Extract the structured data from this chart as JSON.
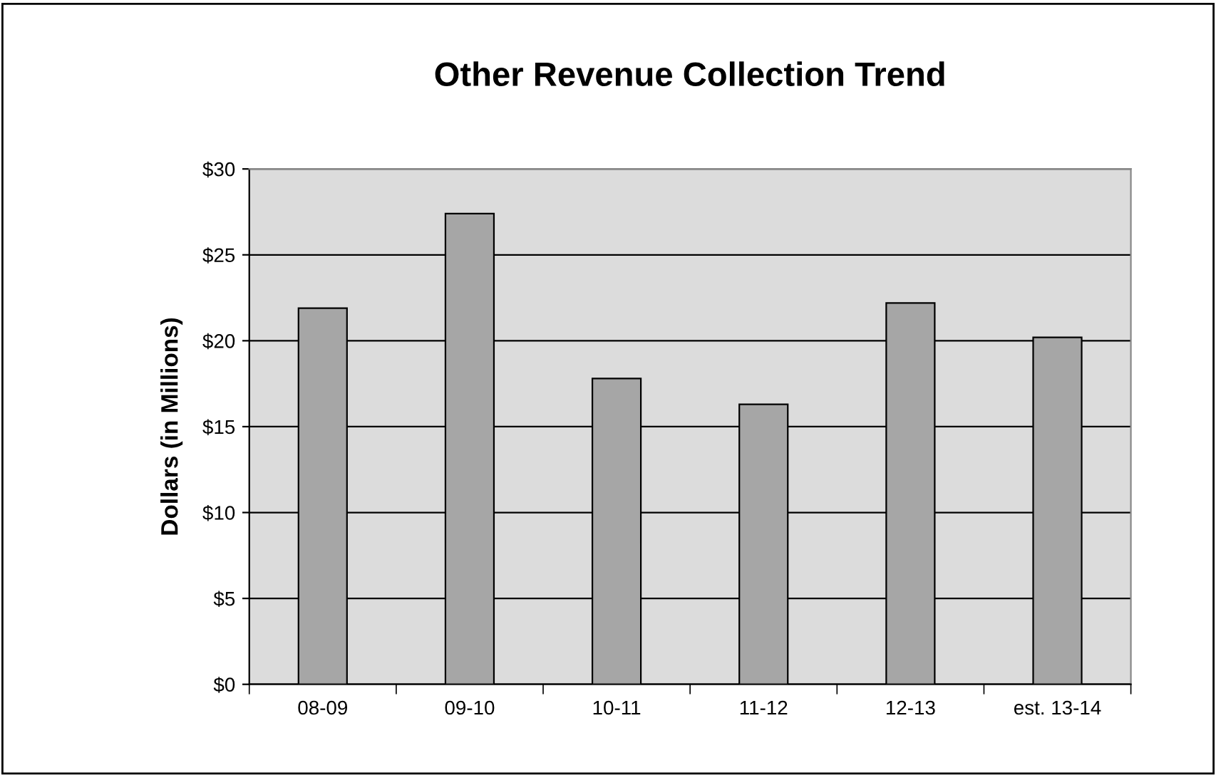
{
  "chart_data": {
    "type": "bar",
    "title": "Other Revenue Collection Trend",
    "ylabel": "Dollars (in Millions)",
    "categories": [
      "08-09",
      "09-10",
      "10-11",
      "11-12",
      "12-13",
      "est. 13-14"
    ],
    "values": [
      21.9,
      27.4,
      17.8,
      16.3,
      22.2,
      20.2
    ],
    "color": "#a6a6a6",
    "ylim": [
      0,
      30
    ],
    "yticks": [
      {
        "value": 0,
        "label": "$0"
      },
      {
        "value": 5,
        "label": "$5"
      },
      {
        "value": 10,
        "label": "$10"
      },
      {
        "value": 15,
        "label": "$15"
      },
      {
        "value": 20,
        "label": "$20"
      },
      {
        "value": 25,
        "label": "$25"
      },
      {
        "value": 30,
        "label": "$30"
      }
    ],
    "grid": "y",
    "legend": false
  }
}
